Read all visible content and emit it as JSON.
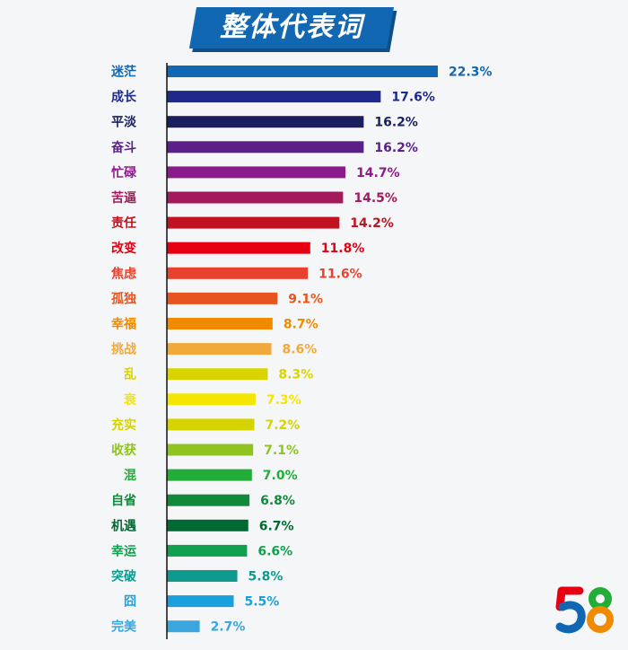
{
  "title": "整体代表词",
  "chart_data": {
    "type": "bar",
    "orientation": "horizontal",
    "title": "整体代表词",
    "xlim": [
      0,
      30
    ],
    "grid": false,
    "legend": "none",
    "categories": [
      "迷茫",
      "成长",
      "平淡",
      "奋斗",
      "忙碌",
      "苦逼",
      "责任",
      "改变",
      "焦虑",
      "孤独",
      "幸福",
      "挑战",
      "乱",
      "衰",
      "充实",
      "收获",
      "混",
      "自省",
      "机遇",
      "幸运",
      "突破",
      "囧",
      "完美"
    ],
    "values": [
      22.3,
      17.6,
      16.2,
      16.2,
      14.7,
      14.5,
      14.2,
      11.8,
      11.6,
      9.1,
      8.7,
      8.6,
      8.3,
      7.3,
      7.2,
      7.1,
      7.0,
      6.8,
      6.7,
      6.6,
      5.8,
      5.5,
      2.7
    ],
    "labels": [
      "22.3%",
      "17.6%",
      "16.2%",
      "16.2%",
      "14.7%",
      "14.5%",
      "14.2%",
      "11.8%",
      "11.6%",
      "9.1%",
      "8.7%",
      "8.6%",
      "8.3%",
      "7.3%",
      "7.2%",
      "7.1%",
      "7.0%",
      "6.8%",
      "6.7%",
      "6.6%",
      "5.8%",
      "5.5%",
      "2.7%"
    ],
    "colors": [
      "#1167b1",
      "#1d2a8a",
      "#1a1f5e",
      "#5b1f8a",
      "#8b1a8a",
      "#a3195b",
      "#c0131f",
      "#e60012",
      "#e8412d",
      "#e8541f",
      "#f08a00",
      "#f2a93b",
      "#d9d400",
      "#f4e600",
      "#d6d400",
      "#8fc31f",
      "#22ac38",
      "#12893a",
      "#006934",
      "#11a04e",
      "#0f9a8f",
      "#1aa0dc",
      "#3aa6dd"
    ]
  },
  "logo": {
    "text": "58",
    "colors": [
      "#e60012",
      "#1167b1",
      "#22ac38",
      "#f08a00"
    ]
  }
}
